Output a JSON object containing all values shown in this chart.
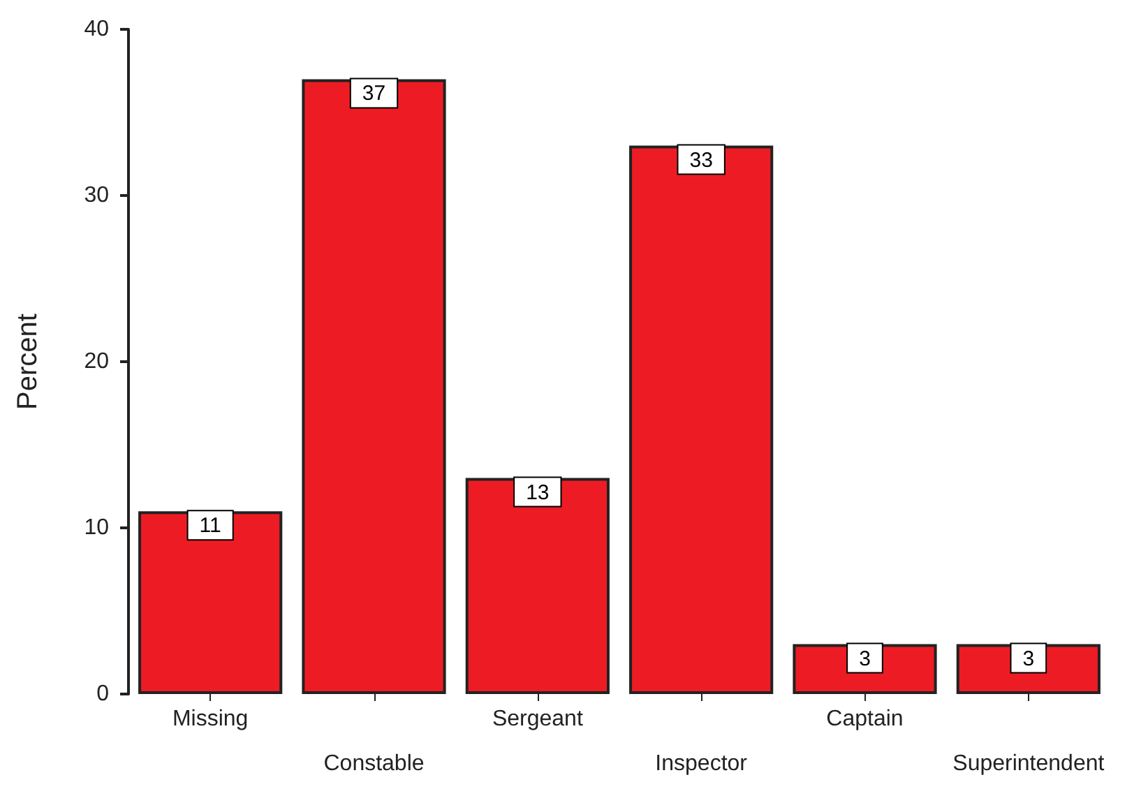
{
  "chart_data": {
    "type": "bar",
    "ylabel": "Percent",
    "categories": [
      "Missing",
      "Constable",
      "Sergeant",
      "Inspector",
      "Captain",
      "Superintendent"
    ],
    "values": [
      11,
      37,
      13,
      33,
      3,
      3
    ],
    "color": "#ed1c24",
    "ylim": [
      0,
      40
    ],
    "yticks": [
      0,
      10,
      20,
      30,
      40
    ],
    "grid": false,
    "data_labels": true
  }
}
